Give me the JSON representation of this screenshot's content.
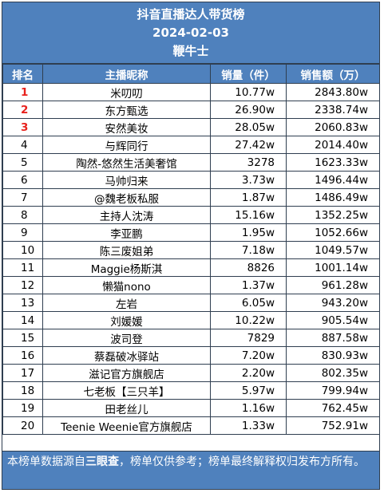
{
  "header": {
    "title": "抖音直播达人带货榜",
    "date": "2024-02-03",
    "source": "鞭牛士"
  },
  "columns": {
    "rank": "排名",
    "name": "主播昵称",
    "sales": "销量（件）",
    "revenue": "销售额（万）"
  },
  "rows": [
    {
      "rank": "1",
      "name": "米叨叨",
      "sales": "10.77w",
      "revenue": "2843.80w"
    },
    {
      "rank": "2",
      "name": "东方甄选",
      "sales": "26.90w",
      "revenue": "2338.74w"
    },
    {
      "rank": "3",
      "name": "安然美妆",
      "sales": "28.05w",
      "revenue": "2060.83w"
    },
    {
      "rank": "4",
      "name": "与辉同行",
      "sales": "27.42w",
      "revenue": "2014.40w"
    },
    {
      "rank": "5",
      "name": "陶然-悠然生活美奢馆",
      "sales": "3278",
      "revenue": "1623.33w"
    },
    {
      "rank": "6",
      "name": "马帅归来",
      "sales": "3.73w",
      "revenue": "1496.44w"
    },
    {
      "rank": "7",
      "name": "@魏老板私服",
      "sales": "1.87w",
      "revenue": "1486.49w"
    },
    {
      "rank": "8",
      "name": "主持人沈涛",
      "sales": "15.16w",
      "revenue": "1352.25w"
    },
    {
      "rank": "9",
      "name": "李亚鹏",
      "sales": "1.95w",
      "revenue": "1052.66w"
    },
    {
      "rank": "10",
      "name": "陈三废姐弟",
      "sales": "7.18w",
      "revenue": "1049.57w"
    },
    {
      "rank": "11",
      "name": "Maggie杨斯淇",
      "sales": "8826",
      "revenue": "1001.14w"
    },
    {
      "rank": "12",
      "name": "懒猫nono",
      "sales": "1.37w",
      "revenue": "961.28w"
    },
    {
      "rank": "13",
      "name": "左岩",
      "sales": "6.05w",
      "revenue": "943.20w"
    },
    {
      "rank": "14",
      "name": "刘媛媛",
      "sales": "10.22w",
      "revenue": "905.54w"
    },
    {
      "rank": "15",
      "name": "波司登",
      "sales": "7829",
      "revenue": "887.58w"
    },
    {
      "rank": "16",
      "name": "蔡磊破冰驿站",
      "sales": "7.20w",
      "revenue": "830.93w"
    },
    {
      "rank": "17",
      "name": "滋记官方旗舰店",
      "sales": "2.20w",
      "revenue": "802.35w"
    },
    {
      "rank": "18",
      "name": "七老板【三只羊】",
      "sales": "5.97w",
      "revenue": "799.94w"
    },
    {
      "rank": "19",
      "name": "田老丝儿",
      "sales": "1.16w",
      "revenue": "762.45w"
    },
    {
      "rank": "20",
      "name": "Teenie Weenie官方旗舰店",
      "sales": "1.33w",
      "revenue": "752.91w"
    }
  ],
  "footer": {
    "prefix": "本榜单数据源自",
    "highlight": "三眼查",
    "suffix": "，榜单仅供参考；榜单最终解释权归发布方所有。"
  },
  "colors": {
    "header_bg": "#4f81bd",
    "top3_rank": "#e8211c"
  }
}
